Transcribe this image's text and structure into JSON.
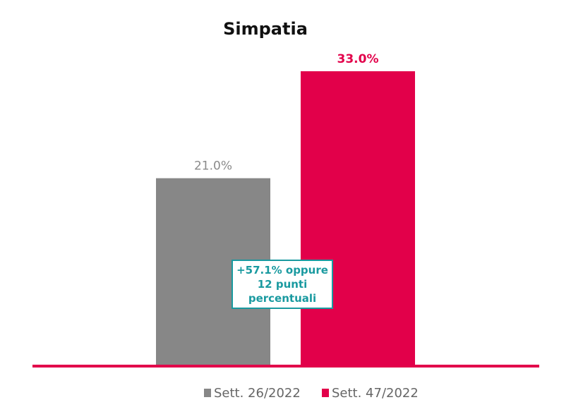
{
  "chart_data": {
    "type": "bar",
    "title": "Simpatia",
    "categories": [
      "Sett. 26/2022",
      "Sett. 47/2022"
    ],
    "values": [
      21.0,
      33.0
    ],
    "value_labels": [
      "21.0%",
      "33.0%"
    ],
    "colors": [
      "#878787",
      "#e2004a"
    ],
    "label_colors": [
      "#8a8a8a",
      "#e2004a"
    ],
    "legend": [
      "Sett. 26/2022",
      "Sett. 47/2022"
    ],
    "legend_position": "bottom",
    "ylim": [
      0,
      33.0
    ],
    "grid": false,
    "annotation": {
      "lines": [
        "+57.1% oppure",
        "12 punti",
        "percentuali"
      ],
      "color": "#1a9aa0"
    }
  }
}
